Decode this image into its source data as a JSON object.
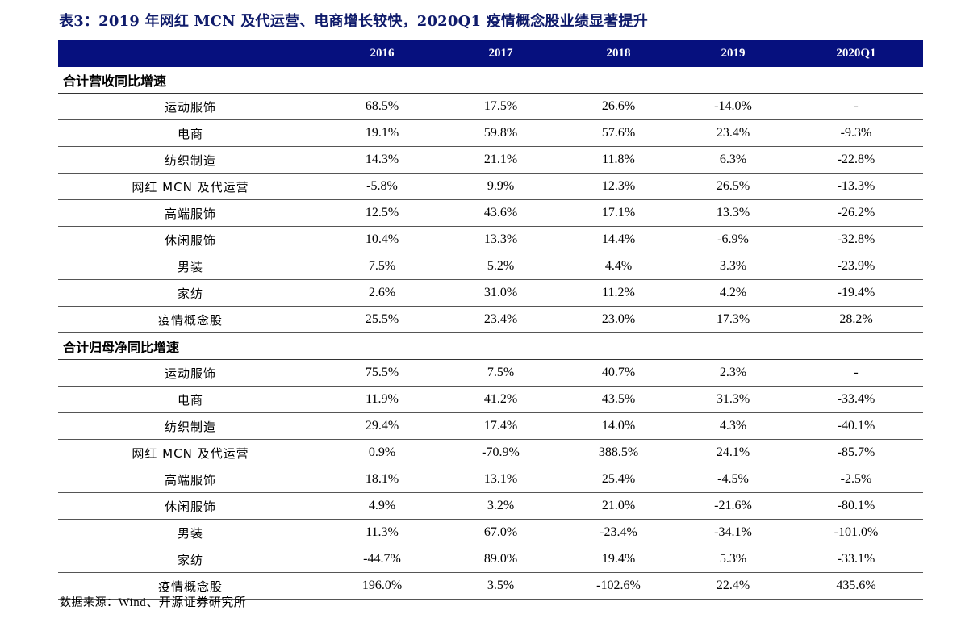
{
  "title": "表3：2019 年网红 MCN 及代运营、电商增长较快，2020Q1 疫情概念股业绩显著提升",
  "header": {
    "columns": [
      "2016",
      "2017",
      "2018",
      "2019",
      "2020Q1"
    ]
  },
  "sections": [
    {
      "label": "合计营收同比增速",
      "rows": [
        {
          "name": "运动服饰",
          "values": [
            "68.5%",
            "17.5%",
            "26.6%",
            "-14.0%",
            "-"
          ]
        },
        {
          "name": "电商",
          "values": [
            "19.1%",
            "59.8%",
            "57.6%",
            "23.4%",
            "-9.3%"
          ]
        },
        {
          "name": "纺织制造",
          "values": [
            "14.3%",
            "21.1%",
            "11.8%",
            "6.3%",
            "-22.8%"
          ]
        },
        {
          "name": "网红 MCN 及代运营",
          "values": [
            "-5.8%",
            "9.9%",
            "12.3%",
            "26.5%",
            "-13.3%"
          ]
        },
        {
          "name": "高端服饰",
          "values": [
            "12.5%",
            "43.6%",
            "17.1%",
            "13.3%",
            "-26.2%"
          ]
        },
        {
          "name": "休闲服饰",
          "values": [
            "10.4%",
            "13.3%",
            "14.4%",
            "-6.9%",
            "-32.8%"
          ]
        },
        {
          "name": "男装",
          "values": [
            "7.5%",
            "5.2%",
            "4.4%",
            "3.3%",
            "-23.9%"
          ]
        },
        {
          "name": "家纺",
          "values": [
            "2.6%",
            "31.0%",
            "11.2%",
            "4.2%",
            "-19.4%"
          ]
        },
        {
          "name": "疫情概念股",
          "values": [
            "25.5%",
            "23.4%",
            "23.0%",
            "17.3%",
            "28.2%"
          ]
        }
      ]
    },
    {
      "label": "合计归母净同比增速",
      "rows": [
        {
          "name": "运动服饰",
          "values": [
            "75.5%",
            "7.5%",
            "40.7%",
            "2.3%",
            "-"
          ]
        },
        {
          "name": "电商",
          "values": [
            "11.9%",
            "41.2%",
            "43.5%",
            "31.3%",
            "-33.4%"
          ]
        },
        {
          "name": "纺织制造",
          "values": [
            "29.4%",
            "17.4%",
            "14.0%",
            "4.3%",
            "-40.1%"
          ]
        },
        {
          "name": "网红 MCN 及代运营",
          "values": [
            "0.9%",
            "-70.9%",
            "388.5%",
            "24.1%",
            "-85.7%"
          ]
        },
        {
          "name": "高端服饰",
          "values": [
            "18.1%",
            "13.1%",
            "25.4%",
            "-4.5%",
            "-2.5%"
          ]
        },
        {
          "name": "休闲服饰",
          "values": [
            "4.9%",
            "3.2%",
            "21.0%",
            "-21.6%",
            "-80.1%"
          ]
        },
        {
          "name": "男装",
          "values": [
            "11.3%",
            "67.0%",
            "-23.4%",
            "-34.1%",
            "-101.0%"
          ]
        },
        {
          "name": "家纺",
          "values": [
            "-44.7%",
            "89.0%",
            "19.4%",
            "5.3%",
            "-33.1%"
          ]
        },
        {
          "name": "疫情概念股",
          "values": [
            "196.0%",
            "3.5%",
            "-102.6%",
            "22.4%",
            "435.6%"
          ]
        }
      ]
    }
  ],
  "source": {
    "prefix": "数据来源：",
    "text": "Wind、开源证券研究所"
  },
  "colors": {
    "header_bg": "#06107e",
    "title": "#0f1b6b"
  }
}
